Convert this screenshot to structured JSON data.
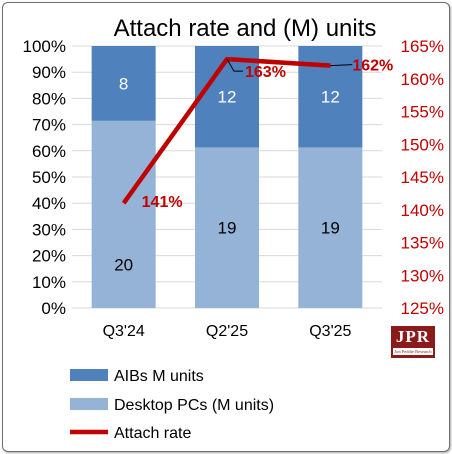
{
  "chart_data": {
    "type": "bar",
    "title": "Attach rate and (M) units",
    "categories": [
      "Q3'24",
      "Q2'25",
      "Q3'25"
    ],
    "stacked_percent": true,
    "series": [
      {
        "name": "AIBs M units",
        "values": [
          8,
          12,
          12
        ],
        "color": "#4f81bd"
      },
      {
        "name": "Desktop PCs (M units)",
        "values": [
          20,
          19,
          19
        ],
        "color": "#95b3d7"
      }
    ],
    "line_series": {
      "name": "Attach rate",
      "values": [
        141,
        163,
        162
      ],
      "value_labels": [
        "141%",
        "163%",
        "162%"
      ],
      "color": "#c00000"
    },
    "y_left": {
      "ticks": [
        "0%",
        "10%",
        "20%",
        "30%",
        "40%",
        "50%",
        "60%",
        "70%",
        "80%",
        "90%",
        "100%"
      ],
      "range": [
        0,
        100
      ]
    },
    "y_right": {
      "ticks": [
        "125%",
        "130%",
        "135%",
        "140%",
        "145%",
        "150%",
        "155%",
        "160%",
        "165%"
      ],
      "range": [
        125,
        165
      ]
    },
    "grid": true,
    "legend_position": "bottom"
  },
  "logo": {
    "text": "JPR",
    "subtext": "Jon Peddie Research"
  }
}
